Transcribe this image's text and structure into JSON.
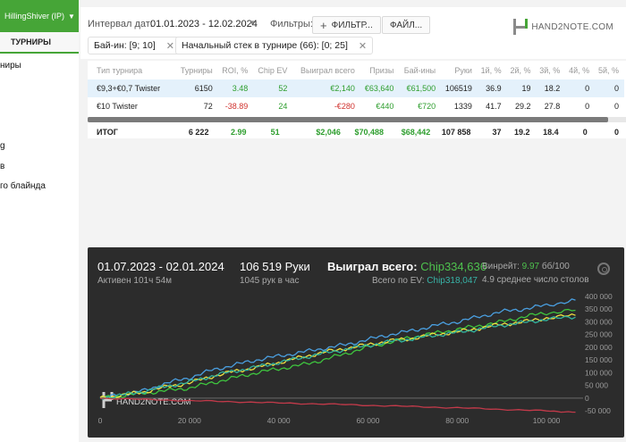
{
  "sidebar": {
    "user": "HillingShiver (IP)",
    "tab": "ТУРНИРЫ",
    "items": [
      "ниры",
      "",
      "",
      "",
      "g",
      "в",
      "го блайнда"
    ]
  },
  "filters": {
    "date_label": "Интервал дат:",
    "date_value": "01.01.2023 - 12.02.2024",
    "filters_label": "Фильтры:",
    "filter_button": "ФИЛЬТР...",
    "file_button": "ФАЙЛ...",
    "chips": [
      "Бай-ин: [9; 10]",
      "Начальный стек в турнире (66): [0; 25]"
    ]
  },
  "logo": "HAND2NOTE.COM",
  "table": {
    "headers": [
      "Тип турнира",
      "Турниры",
      "ROI, %",
      "Chip EV",
      "Выиграл всего",
      "Призы",
      "Бай-ины",
      "Руки",
      "1й, %",
      "2й, %",
      "3й, %",
      "4й, %",
      "5й, %"
    ],
    "rows": [
      [
        "€9,3+€0,7 Twister",
        "6150",
        "3.48",
        "52",
        "€2,140",
        "€63,640",
        "€61,500",
        "106519",
        "36.9",
        "19",
        "18.2",
        "0",
        "0"
      ],
      [
        "€10 Twister",
        "72",
        "-38.89",
        "24",
        "-€280",
        "€440",
        "€720",
        "1339",
        "41.7",
        "29.2",
        "27.8",
        "0",
        "0"
      ]
    ],
    "total": [
      "ИТОГ",
      "6 222",
      "2.99",
      "51",
      "$2,046",
      "$70,488",
      "$68,442",
      "107 858",
      "37",
      "19.2",
      "18.4",
      "0",
      "0"
    ]
  },
  "graph": {
    "date_range": "01.07.2023 - 02.01.2024",
    "active": "Активен 101ч 54м",
    "hands": "106 519 Руки",
    "hands_per_hour": "1045 рук в час",
    "won_label": "Выиграл всего: ",
    "won_value": "Chip334,636",
    "ev_label": "Всего по EV: ",
    "ev_value": "Chip318,047",
    "winrate_label": "Винрейт: ",
    "winrate_value": "9.97",
    "winrate_unit": " бб/100",
    "avg_tables": "4.9 среднее число столов",
    "watermark": "HAND2NOTE.COM"
  },
  "chart_data": {
    "type": "line",
    "xlim": [
      0,
      107000
    ],
    "ylim": [
      -60000,
      410000
    ],
    "x_ticks": [
      0,
      20000,
      40000,
      60000,
      80000,
      100000
    ],
    "x_tick_labels": [
      "0",
      "20 000",
      "40 000",
      "60 000",
      "80 000",
      "100 000"
    ],
    "y_ticks": [
      400000,
      350000,
      300000,
      250000,
      200000,
      150000,
      100000,
      50000,
      0,
      -50000
    ],
    "y_tick_labels": [
      "400 000",
      "350 000",
      "300 000",
      "250 000",
      "200 000",
      "150 000",
      "100 000",
      "50 000",
      "0",
      "-50 000"
    ],
    "colors": {
      "blue": "#4a9fe0",
      "green": "#3ec43e",
      "yellow": "#f0e040",
      "teal": "#32b39f",
      "red": "#c33a4a"
    },
    "series": [
      {
        "color": "blue",
        "x": [
          0,
          5000,
          10000,
          15000,
          20000,
          25000,
          30000,
          35000,
          40000,
          45000,
          50000,
          55000,
          60000,
          65000,
          70000,
          75000,
          80000,
          85000,
          90000,
          95000,
          100000,
          106500
        ],
        "values": [
          0,
          15000,
          30000,
          60000,
          80000,
          110000,
          130000,
          150000,
          165000,
          180000,
          195000,
          210000,
          230000,
          250000,
          265000,
          285000,
          300000,
          320000,
          340000,
          350000,
          365000,
          385000
        ]
      },
      {
        "color": "green",
        "x": [
          0,
          5000,
          10000,
          15000,
          20000,
          25000,
          30000,
          35000,
          40000,
          45000,
          50000,
          55000,
          60000,
          65000,
          70000,
          75000,
          80000,
          85000,
          90000,
          95000,
          100000,
          106500
        ],
        "values": [
          0,
          10000,
          20000,
          30000,
          40000,
          60000,
          80000,
          100000,
          115000,
          130000,
          150000,
          175000,
          200000,
          220000,
          240000,
          255000,
          270000,
          285000,
          300000,
          320000,
          335000,
          345000
        ]
      },
      {
        "color": "yellow",
        "x": [
          0,
          5000,
          10000,
          15000,
          20000,
          25000,
          30000,
          35000,
          40000,
          45000,
          50000,
          55000,
          60000,
          65000,
          70000,
          75000,
          80000,
          85000,
          90000,
          95000,
          100000,
          106500
        ],
        "values": [
          0,
          12000,
          25000,
          45000,
          60000,
          85000,
          105000,
          120000,
          140000,
          160000,
          180000,
          195000,
          210000,
          225000,
          235000,
          250000,
          260000,
          275000,
          290000,
          300000,
          315000,
          325000
        ]
      },
      {
        "color": "teal",
        "x": [
          0,
          5000,
          10000,
          15000,
          20000,
          25000,
          30000,
          35000,
          40000,
          45000,
          50000,
          55000,
          60000,
          65000,
          70000,
          75000,
          80000,
          85000,
          90000,
          95000,
          100000,
          106500
        ],
        "values": [
          0,
          13000,
          27000,
          47000,
          63000,
          87000,
          106000,
          122000,
          140000,
          158000,
          176000,
          192000,
          207000,
          222000,
          233000,
          247000,
          258000,
          272000,
          287000,
          297000,
          310000,
          318000
        ]
      },
      {
        "color": "red",
        "x": [
          0,
          10000,
          20000,
          30000,
          40000,
          50000,
          60000,
          70000,
          80000,
          90000,
          100000,
          106500
        ],
        "values": [
          0,
          -5000,
          -10000,
          -14000,
          -19000,
          -23000,
          -28000,
          -33000,
          -38000,
          -44000,
          -50000,
          -55000
        ]
      }
    ]
  }
}
